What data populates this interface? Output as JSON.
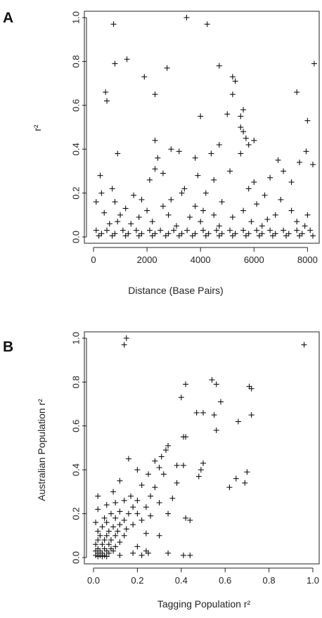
{
  "chart_data": [
    {
      "panel": "A",
      "type": "scatter",
      "title": "",
      "xlabel": "Distance (Base Pairs)",
      "ylabel": "r²",
      "xlim": [
        0,
        8200
      ],
      "ylim": [
        0,
        1.0
      ],
      "xticks": [
        "0",
        "2000",
        "4000",
        "6000",
        "8000"
      ],
      "yticks": [
        "0.0",
        "0.2",
        "0.4",
        "0.6",
        "0.8",
        "1.0"
      ],
      "marker": "+",
      "grid": false,
      "series": [
        {
          "points": [
            [
              3480,
              1.0
            ],
            [
              4250,
              0.97
            ],
            [
              750,
              0.97
            ],
            [
              1250,
              0.81
            ],
            [
              800,
              0.79
            ],
            [
              8250,
              0.79
            ],
            [
              4700,
              0.78
            ],
            [
              2750,
              0.77
            ],
            [
              1900,
              0.73
            ],
            [
              5200,
              0.73
            ],
            [
              5300,
              0.71
            ],
            [
              2300,
              0.65
            ],
            [
              5200,
              0.65
            ],
            [
              450,
              0.66
            ],
            [
              7600,
              0.66
            ],
            [
              500,
              0.62
            ],
            [
              5600,
              0.58
            ],
            [
              5000,
              0.56
            ],
            [
              4000,
              0.55
            ],
            [
              5500,
              0.55
            ],
            [
              8000,
              0.53
            ],
            [
              5500,
              0.5
            ],
            [
              5600,
              0.48
            ],
            [
              5700,
              0.45
            ],
            [
              2300,
              0.44
            ],
            [
              6000,
              0.44
            ],
            [
              4700,
              0.42
            ],
            [
              5800,
              0.42
            ],
            [
              2900,
              0.4
            ],
            [
              3200,
              0.39
            ],
            [
              4400,
              0.38
            ],
            [
              900,
              0.38
            ],
            [
              5500,
              0.38
            ],
            [
              7950,
              0.39
            ],
            [
              3800,
              0.36
            ],
            [
              2400,
              0.36
            ],
            [
              6900,
              0.35
            ],
            [
              7700,
              0.34
            ],
            [
              8200,
              0.33
            ],
            [
              5100,
              0.3
            ],
            [
              2300,
              0.31
            ],
            [
              2600,
              0.29
            ],
            [
              7100,
              0.3
            ],
            [
              250,
              0.28
            ],
            [
              3900,
              0.28
            ],
            [
              6600,
              0.27
            ],
            [
              4500,
              0.26
            ],
            [
              2100,
              0.26
            ],
            [
              6000,
              0.25
            ],
            [
              7400,
              0.25
            ],
            [
              700,
              0.22
            ],
            [
              3400,
              0.22
            ],
            [
              5800,
              0.22
            ],
            [
              3300,
              0.2
            ],
            [
              300,
              0.2
            ],
            [
              1500,
              0.19
            ],
            [
              4200,
              0.2
            ],
            [
              6400,
              0.19
            ],
            [
              1800,
              0.17
            ],
            [
              2900,
              0.17
            ],
            [
              7000,
              0.17
            ],
            [
              100,
              0.16
            ],
            [
              800,
              0.16
            ],
            [
              4800,
              0.16
            ],
            [
              6100,
              0.15
            ],
            [
              2600,
              0.14
            ],
            [
              3800,
              0.14
            ],
            [
              1200,
              0.13
            ],
            [
              2000,
              0.12
            ],
            [
              4100,
              0.12
            ],
            [
              5600,
              0.12
            ],
            [
              7400,
              0.12
            ],
            [
              400,
              0.11
            ],
            [
              1000,
              0.1
            ],
            [
              2800,
              0.1
            ],
            [
              4500,
              0.1
            ],
            [
              6800,
              0.1
            ],
            [
              8000,
              0.1
            ],
            [
              1700,
              0.09
            ],
            [
              3600,
              0.09
            ],
            [
              5200,
              0.09
            ],
            [
              6500,
              0.08
            ],
            [
              900,
              0.07
            ],
            [
              2200,
              0.07
            ],
            [
              4000,
              0.07
            ],
            [
              5900,
              0.07
            ],
            [
              7600,
              0.07
            ],
            [
              600,
              0.06
            ],
            [
              1400,
              0.06
            ],
            [
              3100,
              0.05
            ],
            [
              4700,
              0.05
            ],
            [
              6300,
              0.05
            ],
            [
              7900,
              0.05
            ],
            [
              100,
              0.03
            ],
            [
              500,
              0.03
            ],
            [
              1100,
              0.03
            ],
            [
              1600,
              0.03
            ],
            [
              2100,
              0.03
            ],
            [
              2500,
              0.03
            ],
            [
              3000,
              0.03
            ],
            [
              3500,
              0.03
            ],
            [
              4100,
              0.03
            ],
            [
              4600,
              0.03
            ],
            [
              5100,
              0.03
            ],
            [
              5600,
              0.03
            ],
            [
              6100,
              0.03
            ],
            [
              6600,
              0.03
            ],
            [
              7100,
              0.03
            ],
            [
              7600,
              0.03
            ],
            [
              8100,
              0.03
            ],
            [
              300,
              0.015
            ],
            [
              800,
              0.015
            ],
            [
              1300,
              0.015
            ],
            [
              1800,
              0.015
            ],
            [
              2300,
              0.015
            ],
            [
              2800,
              0.015
            ],
            [
              3300,
              0.015
            ],
            [
              3800,
              0.015
            ],
            [
              4300,
              0.015
            ],
            [
              4800,
              0.015
            ],
            [
              5300,
              0.015
            ],
            [
              5800,
              0.015
            ],
            [
              6300,
              0.015
            ],
            [
              6800,
              0.015
            ],
            [
              7300,
              0.015
            ],
            [
              7800,
              0.015
            ],
            [
              200,
              0.005
            ],
            [
              700,
              0.005
            ],
            [
              1200,
              0.005
            ],
            [
              1700,
              0.005
            ],
            [
              2200,
              0.005
            ],
            [
              2700,
              0.005
            ],
            [
              3200,
              0.005
            ],
            [
              3700,
              0.005
            ],
            [
              4200,
              0.005
            ],
            [
              4700,
              0.005
            ],
            [
              5200,
              0.005
            ],
            [
              5700,
              0.005
            ],
            [
              6200,
              0.005
            ],
            [
              6700,
              0.005
            ],
            [
              7200,
              0.005
            ],
            [
              7700,
              0.005
            ],
            [
              8200,
              0.005
            ]
          ]
        }
      ]
    },
    {
      "panel": "B",
      "type": "scatter",
      "title": "",
      "xlabel": "Tagging Population r²",
      "ylabel": "Australian Population r²",
      "xlim": [
        0,
        1.0
      ],
      "ylim": [
        0,
        1.0
      ],
      "xticks": [
        "0.0",
        "0.2",
        "0.4",
        "0.6",
        "0.8",
        "1.0"
      ],
      "yticks": [
        "0.0",
        "0.2",
        "0.4",
        "0.6",
        "0.8",
        "1.0"
      ],
      "marker": "+",
      "grid": false,
      "series": [
        {
          "points": [
            [
              0.15,
              1.0
            ],
            [
              0.14,
              0.97
            ],
            [
              0.96,
              0.97
            ],
            [
              0.54,
              0.81
            ],
            [
              0.42,
              0.79
            ],
            [
              0.56,
              0.79
            ],
            [
              0.71,
              0.78
            ],
            [
              0.72,
              0.77
            ],
            [
              0.4,
              0.73
            ],
            [
              0.58,
              0.71
            ],
            [
              0.47,
              0.66
            ],
            [
              0.5,
              0.66
            ],
            [
              0.55,
              0.65
            ],
            [
              0.72,
              0.65
            ],
            [
              0.66,
              0.62
            ],
            [
              0.56,
              0.58
            ],
            [
              0.42,
              0.55
            ],
            [
              0.41,
              0.55
            ],
            [
              0.34,
              0.51
            ],
            [
              0.33,
              0.49
            ],
            [
              0.31,
              0.46
            ],
            [
              0.16,
              0.45
            ],
            [
              0.28,
              0.44
            ],
            [
              0.5,
              0.43
            ],
            [
              0.41,
              0.42
            ],
            [
              0.38,
              0.42
            ],
            [
              0.3,
              0.41
            ],
            [
              0.2,
              0.4
            ],
            [
              0.49,
              0.4
            ],
            [
              0.7,
              0.39
            ],
            [
              0.65,
              0.36
            ],
            [
              0.48,
              0.37
            ],
            [
              0.25,
              0.38
            ],
            [
              0.32,
              0.38
            ],
            [
              0.69,
              0.34
            ],
            [
              0.62,
              0.32
            ],
            [
              0.12,
              0.35
            ],
            [
              0.38,
              0.34
            ],
            [
              0.22,
              0.33
            ],
            [
              0.28,
              0.32
            ],
            [
              0.09,
              0.3
            ],
            [
              0.17,
              0.28
            ],
            [
              0.26,
              0.28
            ],
            [
              0.36,
              0.27
            ],
            [
              0.02,
              0.28
            ],
            [
              0.14,
              0.26
            ],
            [
              0.2,
              0.26
            ],
            [
              0.3,
              0.25
            ],
            [
              0.1,
              0.25
            ],
            [
              0.06,
              0.24
            ],
            [
              0.18,
              0.23
            ],
            [
              0.24,
              0.23
            ],
            [
              0.02,
              0.22
            ],
            [
              0.12,
              0.21
            ],
            [
              0.34,
              0.2
            ],
            [
              0.08,
              0.2
            ],
            [
              0.16,
              0.2
            ],
            [
              0.2,
              0.2
            ],
            [
              0.26,
              0.19
            ],
            [
              0.42,
              0.18
            ],
            [
              0.44,
              0.17
            ],
            [
              0.05,
              0.18
            ],
            [
              0.1,
              0.18
            ],
            [
              0.14,
              0.17
            ],
            [
              0.22,
              0.17
            ],
            [
              0.01,
              0.16
            ],
            [
              0.06,
              0.16
            ],
            [
              0.12,
              0.15
            ],
            [
              0.18,
              0.15
            ],
            [
              0.04,
              0.14
            ],
            [
              0.09,
              0.14
            ],
            [
              0.15,
              0.13
            ],
            [
              0.02,
              0.12
            ],
            [
              0.07,
              0.12
            ],
            [
              0.11,
              0.12
            ],
            [
              0.24,
              0.11
            ],
            [
              0.03,
              0.1
            ],
            [
              0.06,
              0.1
            ],
            [
              0.1,
              0.1
            ],
            [
              0.14,
              0.1
            ],
            [
              0.3,
              0.1
            ],
            [
              0.02,
              0.08
            ],
            [
              0.05,
              0.08
            ],
            [
              0.08,
              0.08
            ],
            [
              0.12,
              0.07
            ],
            [
              0.01,
              0.06
            ],
            [
              0.04,
              0.06
            ],
            [
              0.07,
              0.06
            ],
            [
              0.1,
              0.05
            ],
            [
              0.2,
              0.05
            ],
            [
              0.02,
              0.04
            ],
            [
              0.05,
              0.04
            ],
            [
              0.08,
              0.04
            ],
            [
              0.01,
              0.03
            ],
            [
              0.03,
              0.03
            ],
            [
              0.06,
              0.03
            ],
            [
              0.09,
              0.03
            ],
            [
              0.24,
              0.03
            ],
            [
              0.02,
              0.02
            ],
            [
              0.04,
              0.02
            ],
            [
              0.07,
              0.02
            ],
            [
              0.18,
              0.02
            ],
            [
              0.25,
              0.02
            ],
            [
              0.34,
              0.02
            ],
            [
              0.01,
              0.01
            ],
            [
              0.03,
              0.01
            ],
            [
              0.05,
              0.01
            ],
            [
              0.12,
              0.01
            ],
            [
              0.22,
              0.01
            ],
            [
              0.41,
              0.01
            ],
            [
              0.44,
              0.01
            ],
            [
              0.02,
              0.005
            ],
            [
              0.04,
              0.005
            ],
            [
              0.06,
              0.005
            ]
          ]
        }
      ]
    }
  ]
}
